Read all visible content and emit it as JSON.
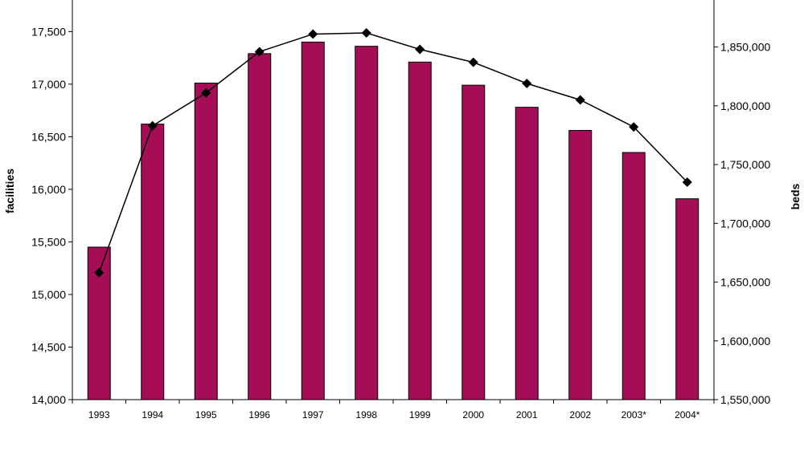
{
  "chart_data": {
    "type": "bar",
    "categories": [
      "1993",
      "1994",
      "1995",
      "1996",
      "1997",
      "1998",
      "1999",
      "2000",
      "2001",
      "2002",
      "2003*",
      "2004*"
    ],
    "series": [
      {
        "type": "bar",
        "axis": "left",
        "color": "#a50d56",
        "values": [
          15450,
          16620,
          17010,
          17290,
          17400,
          17360,
          17210,
          16990,
          16780,
          16560,
          16350,
          15910
        ]
      },
      {
        "type": "line",
        "axis": "right",
        "color": "#000000",
        "marker": "diamond",
        "values": [
          1658000,
          1783000,
          1811000,
          1846000,
          1861000,
          1862000,
          1848000,
          1837000,
          1819000,
          1805000,
          1782000,
          1735000
        ]
      }
    ],
    "ylabel_left": "facilities",
    "ylabel_right": "beds",
    "ylim_left": [
      14000,
      17800
    ],
    "ylim_right": [
      1550000,
      1890000
    ],
    "yticks_left": [
      "14,000",
      "14,500",
      "15,000",
      "15,500",
      "16,000",
      "16,500",
      "17,000",
      "17,500"
    ],
    "yticks_right": [
      "1,550,000",
      "1,600,000",
      "1,650,000",
      "1,700,000",
      "1,750,000",
      "1,800,000",
      "1,850,000"
    ],
    "grid": false,
    "legend": "none"
  }
}
